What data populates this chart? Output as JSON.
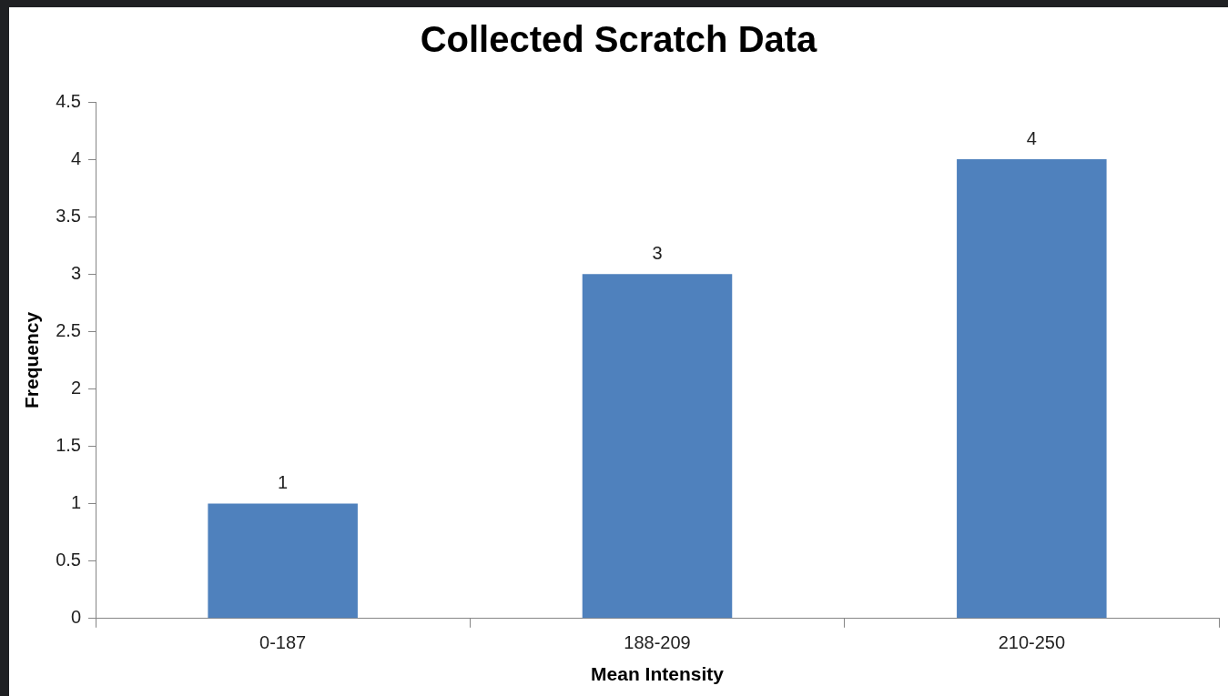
{
  "chart_data": {
    "type": "bar",
    "title": "Collected Scratch Data",
    "xlabel": "Mean Intensity",
    "ylabel": "Frequency",
    "categories": [
      "0-187",
      "188-209",
      "210-250"
    ],
    "values": [
      1,
      3,
      4
    ],
    "color": "#4f81bd",
    "ylim": [
      0,
      4.5
    ],
    "yticks": [
      0,
      0.5,
      1,
      1.5,
      2,
      2.5,
      3,
      3.5,
      4,
      4.5
    ],
    "grid": false,
    "legend": false,
    "data_labels": true
  }
}
